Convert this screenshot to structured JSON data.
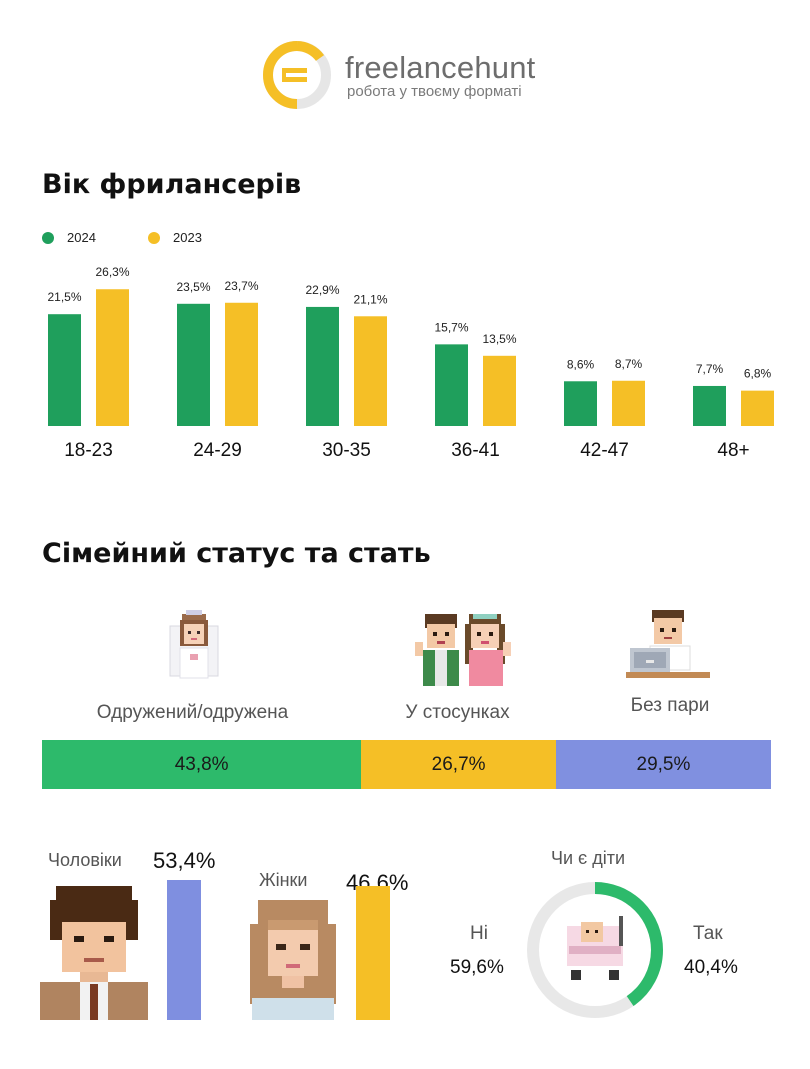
{
  "brand": {
    "name": "freelancehunt",
    "tagline": "робота у твоєму форматі",
    "colors": {
      "accent": "#f5bf26",
      "text": "#6d6d6d"
    }
  },
  "age_section": {
    "title": "Вік фрилансерів",
    "legend": [
      {
        "label": "2024",
        "color": "#1f9f5c"
      },
      {
        "label": "2023",
        "color": "#f5bf26"
      }
    ]
  },
  "chart_data": {
    "type": "bar",
    "categories": [
      "18-23",
      "24-29",
      "30-35",
      "36-41",
      "42-47",
      "48+"
    ],
    "series": [
      {
        "name": "2024",
        "values": [
          21.5,
          23.5,
          22.9,
          15.7,
          8.6,
          7.7
        ],
        "labels": [
          "21,5%",
          "23,5%",
          "22,9%",
          "15,7%",
          "8,6%",
          "7,7%"
        ],
        "color": "#1f9f5c"
      },
      {
        "name": "2023",
        "values": [
          26.3,
          23.7,
          21.1,
          13.5,
          8.7,
          6.8
        ],
        "labels": [
          "26,3%",
          "23,7%",
          "21,1%",
          "13,5%",
          "8,7%",
          "6,8%"
        ],
        "color": "#f5bf26"
      }
    ],
    "unit": "%",
    "legend": "top-left",
    "grid": false
  },
  "family_section": {
    "title": "Сімейний статус та стать",
    "status": [
      {
        "label": "Одружений/одружена",
        "value": 43.8,
        "display": "43,8%",
        "color": "#2dba6b",
        "icon": "bride-pixel-icon"
      },
      {
        "label": "У стосунках",
        "value": 26.7,
        "display": "26,7%",
        "color": "#f5bf26",
        "icon": "couple-pixel-icon"
      },
      {
        "label": "Без пари",
        "value": 29.5,
        "display": "29,5%",
        "color": "#8090e0",
        "icon": "laptop-man-pixel-icon"
      }
    ],
    "gender": {
      "men": {
        "label": "Чоловіки",
        "value": 53.4,
        "display": "53,4%",
        "color": "#7f8fe0",
        "icon": "man-pixel-icon"
      },
      "women": {
        "label": "Жінки",
        "value": 46.6,
        "display": "46,6%",
        "color": "#f5bf26",
        "icon": "woman-pixel-icon"
      }
    },
    "kids": {
      "title": "Чи є діти",
      "no": {
        "label": "Ні",
        "value": 59.6,
        "display": "59,6%",
        "color": "#e8e8e8"
      },
      "yes": {
        "label": "Так",
        "value": 40.4,
        "display": "40,4%",
        "color": "#2dba6b"
      },
      "icon": "baby-stroller-pixel-icon"
    }
  }
}
